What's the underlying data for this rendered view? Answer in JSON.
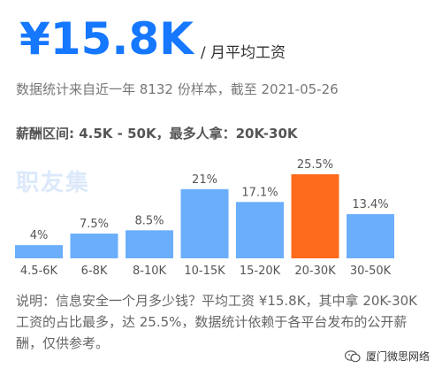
{
  "header": {
    "salary_value": "¥15.8K",
    "salary_unit": "/ 月平均工资"
  },
  "stat_note": "数据统计来自近一年 8132 份样本，截至 2021-05-26",
  "range_line": "薪酬区间: 4.5K - 50K，最多人拿：20K-30K",
  "watermark_logo_text": "职友集",
  "chart_data": {
    "type": "bar",
    "categories": [
      "4.5-6K",
      "6-8K",
      "8-10K",
      "10-15K",
      "15-20K",
      "20-30K",
      "30-50K"
    ],
    "values": [
      4,
      7.5,
      8.5,
      21,
      17.1,
      25.5,
      13.4
    ],
    "value_labels": [
      "4%",
      "7.5%",
      "8.5%",
      "21%",
      "17.1%",
      "25.5%",
      "13.4%"
    ],
    "unit": "%",
    "ylim": [
      0,
      25.5
    ],
    "highlight_index": 5,
    "colors": {
      "default": "#6aaefc",
      "highlight": "#fd6a1c"
    }
  },
  "description": "说明：信息安全一个月多少钱？平均工资 ¥15.8K，其中拿 20K-30K 工资的占比最多，达 25.5%，数据统计依赖于各平台发布的公开薪酬，仅供参考。",
  "source_mark": {
    "icon": "wechat-icon",
    "text": "厦门微思网络"
  }
}
